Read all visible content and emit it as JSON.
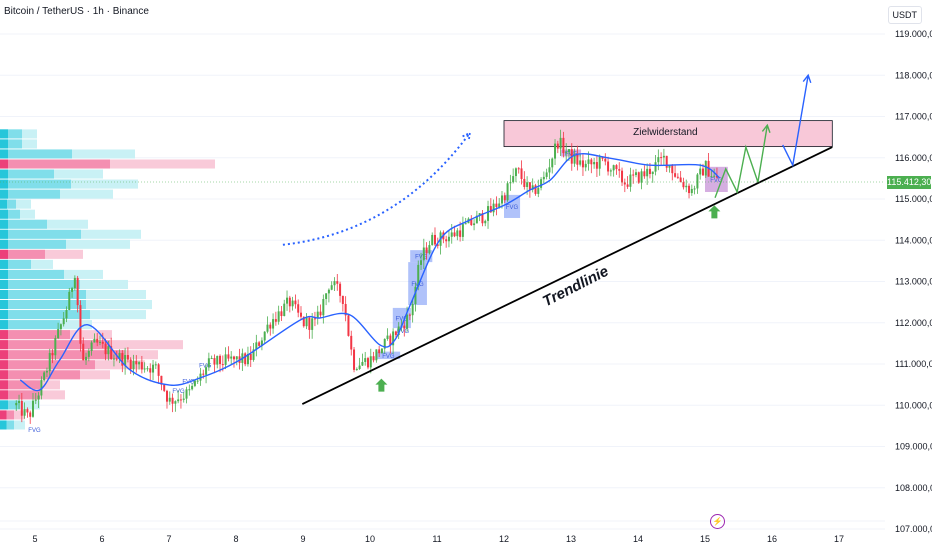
{
  "header": {
    "title": "Bitcoin / TetherUS · 1h · Binance",
    "currency": "USDT"
  },
  "current_price": {
    "label": "115.412,30",
    "value": 115412.3
  },
  "colors": {
    "up": "#4caf50",
    "down": "#f23645",
    "ma": "#2962ff",
    "zone": "#f8c8d8",
    "trendline": "#000000",
    "projection_green": "#4caf50",
    "projection_blue": "#2962ff",
    "fvg": "#6f8ff5",
    "fvg_purple": "#b36bc8"
  },
  "chart_data": {
    "type": "candlestick",
    "title": "Bitcoin / TetherUS · 1h · Binance",
    "ylim": [
      107000,
      119000
    ],
    "xlim": [
      4.48,
      18.1
    ],
    "y_ticks": [
      {
        "v": 119000,
        "label": "119.000,00"
      },
      {
        "v": 118000,
        "label": "118.000,00"
      },
      {
        "v": 117000,
        "label": "117.000,00"
      },
      {
        "v": 116000,
        "label": "116.000,00"
      },
      {
        "v": 115000,
        "label": "115.000,00"
      },
      {
        "v": 114000,
        "label": "114.000,00"
      },
      {
        "v": 113000,
        "label": "113.000,00"
      },
      {
        "v": 112000,
        "label": "112.000,00"
      },
      {
        "v": 111000,
        "label": "111.000,00"
      },
      {
        "v": 110000,
        "label": "110.000,00"
      },
      {
        "v": 109000,
        "label": "109.000,00"
      },
      {
        "v": 108000,
        "label": "108.000,00"
      },
      {
        "v": 107000,
        "label": "107.000,00"
      }
    ],
    "x_ticks": [
      {
        "v": 5,
        "label": "5"
      },
      {
        "v": 6,
        "label": "6"
      },
      {
        "v": 7,
        "label": "7"
      },
      {
        "v": 8,
        "label": "8"
      },
      {
        "v": 9,
        "label": "9"
      },
      {
        "v": 10,
        "label": "10"
      },
      {
        "v": 11,
        "label": "11"
      },
      {
        "v": 12,
        "label": "12"
      },
      {
        "v": 13,
        "label": "13"
      },
      {
        "v": 14,
        "label": "14"
      },
      {
        "v": 15,
        "label": "15"
      },
      {
        "v": 16,
        "label": "16"
      },
      {
        "v": 17,
        "label": "17"
      }
    ],
    "price_path": [
      [
        4.72,
        110000
      ],
      [
        4.9,
        109700
      ],
      [
        5.1,
        110500
      ],
      [
        5.3,
        111500
      ],
      [
        5.5,
        112500
      ],
      [
        5.6,
        113300
      ],
      [
        5.7,
        111000
      ],
      [
        5.9,
        111500
      ],
      [
        6.2,
        111200
      ],
      [
        6.5,
        111000
      ],
      [
        6.8,
        110900
      ],
      [
        7.0,
        110100
      ],
      [
        7.3,
        110300
      ],
      [
        7.6,
        111000
      ],
      [
        8.0,
        111100
      ],
      [
        8.2,
        111100
      ],
      [
        8.5,
        112000
      ],
      [
        8.8,
        112500
      ],
      [
        9.0,
        112000
      ],
      [
        9.2,
        112000
      ],
      [
        9.4,
        113000
      ],
      [
        9.6,
        112600
      ],
      [
        9.75,
        111000
      ],
      [
        10.0,
        111100
      ],
      [
        10.3,
        111600
      ],
      [
        10.6,
        112200
      ],
      [
        10.75,
        113500
      ],
      [
        10.9,
        114000
      ],
      [
        11.2,
        114100
      ],
      [
        11.5,
        114400
      ],
      [
        11.8,
        114700
      ],
      [
        12.0,
        115100
      ],
      [
        12.2,
        115700
      ],
      [
        12.4,
        115100
      ],
      [
        12.6,
        115500
      ],
      [
        12.8,
        116400
      ],
      [
        13.0,
        116000
      ],
      [
        13.2,
        115800
      ],
      [
        13.5,
        115900
      ],
      [
        13.8,
        115400
      ],
      [
        14.1,
        115600
      ],
      [
        14.4,
        116000
      ],
      [
        14.6,
        115500
      ],
      [
        14.8,
        115200
      ],
      [
        15.0,
        115800
      ],
      [
        15.2,
        115412
      ]
    ],
    "moving_average": [
      [
        4.78,
        110613
      ],
      [
        5.07,
        110370
      ],
      [
        5.37,
        111100
      ],
      [
        5.79,
        111950
      ],
      [
        6.42,
        110855
      ],
      [
        7.01,
        110490
      ],
      [
        7.46,
        110660
      ],
      [
        8.06,
        111100
      ],
      [
        8.96,
        112067
      ],
      [
        9.25,
        112115
      ],
      [
        9.7,
        112190
      ],
      [
        10.15,
        111460
      ],
      [
        10.37,
        111580
      ],
      [
        10.6,
        112430
      ],
      [
        11.04,
        114006
      ],
      [
        11.49,
        114490
      ],
      [
        12.01,
        114855
      ],
      [
        12.39,
        115220
      ],
      [
        12.69,
        115460
      ],
      [
        13.06,
        116067
      ],
      [
        13.58,
        115990
      ],
      [
        14.18,
        115820
      ],
      [
        14.93,
        115820
      ],
      [
        15.22,
        115510
      ]
    ],
    "volume_profile": {
      "price_top": 116700,
      "price_bottom": 109400,
      "rows": [
        {
          "side": "up",
          "total": 37,
          "inner": 22
        },
        {
          "side": "up",
          "total": 37,
          "inner": 22
        },
        {
          "side": "up",
          "total": 135,
          "inner": 72
        },
        {
          "side": "down",
          "total": 215,
          "inner": 110
        },
        {
          "side": "up",
          "total": 103,
          "inner": 54
        },
        {
          "side": "up",
          "total": 138,
          "inner": 71
        },
        {
          "side": "up",
          "total": 113,
          "inner": 60
        },
        {
          "side": "up",
          "total": 31,
          "inner": 16
        },
        {
          "side": "up",
          "total": 35,
          "inner": 20
        },
        {
          "side": "up",
          "total": 88,
          "inner": 47
        },
        {
          "side": "up",
          "total": 141,
          "inner": 81
        },
        {
          "side": "up",
          "total": 130,
          "inner": 66
        },
        {
          "side": "down",
          "total": 83,
          "inner": 45
        },
        {
          "side": "up",
          "total": 53,
          "inner": 31
        },
        {
          "side": "up",
          "total": 103,
          "inner": 64
        },
        {
          "side": "up",
          "total": 128,
          "inner": 80
        },
        {
          "side": "up",
          "total": 146,
          "inner": 86
        },
        {
          "side": "up",
          "total": 152,
          "inner": 86
        },
        {
          "side": "up",
          "total": 146,
          "inner": 90
        },
        {
          "side": "up",
          "total": 92,
          "inner": 60
        },
        {
          "side": "down",
          "total": 112,
          "inner": 70
        },
        {
          "side": "down",
          "total": 183,
          "inner": 110
        },
        {
          "side": "down",
          "total": 158,
          "inner": 125
        },
        {
          "side": "down",
          "total": 145,
          "inner": 95
        },
        {
          "side": "down",
          "total": 110,
          "inner": 80
        },
        {
          "side": "down",
          "total": 60,
          "inner": 40
        },
        {
          "side": "down",
          "total": 65,
          "inner": 40
        },
        {
          "side": "up",
          "total": 40,
          "inner": 20
        },
        {
          "side": "down",
          "total": 25,
          "inner": 14
        },
        {
          "side": "up",
          "total": 25,
          "inner": 14
        }
      ]
    },
    "fvg_zones": [
      {
        "label": "FVG",
        "x": [
          12.0,
          12.24
        ],
        "y": [
          114540,
          115100
        ],
        "color": "blue"
      },
      {
        "label": "FVG",
        "x": [
          15.0,
          15.34
        ],
        "y": [
          115170,
          115780
        ],
        "color": "purple"
      },
      {
        "label": "FVG",
        "x": [
          10.57,
          10.85
        ],
        "y": [
          112430,
          113470
        ],
        "color": "blue"
      },
      {
        "label": "FVG",
        "x": [
          10.34,
          10.61
        ],
        "y": [
          111870,
          112360
        ],
        "color": "blue"
      },
      {
        "label": "FVG",
        "x": [
          10.6,
          10.93
        ],
        "y": [
          113470,
          113760
        ],
        "color": "blue"
      },
      {
        "label": "FVG",
        "x": [
          10.1,
          10.45
        ],
        "y": [
          111120,
          111300
        ],
        "color": "blue"
      },
      {
        "label": "FVG",
        "x": [
          12.85,
          13.15
        ],
        "y": [
          116030,
          116200
        ],
        "color": "purple"
      }
    ],
    "fvg_text_marks": [
      {
        "label": "FVG",
        "x": 10.4,
        "y": 111750
      },
      {
        "label": "FVG",
        "x": 7.45,
        "y": 110920
      },
      {
        "label": "FVG",
        "x": 7.2,
        "y": 110530
      },
      {
        "label": "FVG",
        "x": 4.9,
        "y": 109350
      },
      {
        "label": "FVG",
        "x": 7.05,
        "y": 110300
      }
    ],
    "resistance_zone": {
      "label": "Zielwiderstand",
      "x": [
        12.0,
        16.9
      ],
      "y": [
        116270,
        116900
      ]
    },
    "trendline": {
      "label": "Trendlinie",
      "from": [
        8.99,
        110030
      ],
      "to": [
        16.9,
        116260
      ]
    },
    "projection_green": [
      [
        15.15,
        115030
      ],
      [
        15.31,
        115730
      ],
      [
        15.48,
        115170
      ],
      [
        15.61,
        116260
      ],
      [
        15.79,
        115410
      ],
      [
        15.93,
        116790
      ]
    ],
    "projection_blue": [
      [
        16.16,
        116310
      ],
      [
        16.31,
        115820
      ],
      [
        16.54,
        118000
      ]
    ],
    "dotted_arrow": {
      "from": [
        8.7,
        113890
      ],
      "control": [
        10.4,
        114200
      ],
      "to": [
        11.49,
        116600
      ]
    },
    "signal_arrows": [
      [
        10.17,
        110500
      ],
      [
        15.14,
        114700
      ]
    ]
  }
}
